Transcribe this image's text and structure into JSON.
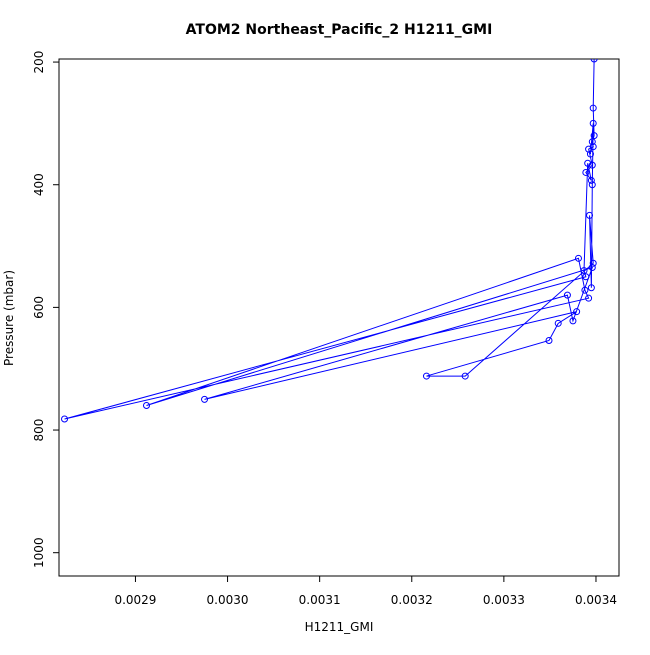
{
  "chart_data": {
    "type": "line",
    "title": "ATOM2 Northeast_Pacific_2 H1211_GMI",
    "xlabel": "H1211_GMI",
    "ylabel": "Pressure (mbar)",
    "xlim": [
      0.002817,
      0.003425
    ],
    "ylim": [
      1038,
      195
    ],
    "y_reversed": true,
    "x_ticks": [
      0.0029,
      0.003,
      0.0031,
      0.0032,
      0.0033,
      0.0034
    ],
    "x_tick_labels": [
      "0.0029",
      "0.0030",
      "0.0031",
      "0.0032",
      "0.0033",
      "0.0034"
    ],
    "y_ticks": [
      200,
      400,
      600,
      800,
      1000
    ],
    "y_tick_labels": [
      "200",
      "400",
      "600",
      "800",
      "1000"
    ],
    "grid": false,
    "legend": "none",
    "series_color": "#0000ff",
    "series": [
      {
        "x": [
          0.003398,
          0.003397,
          0.003398,
          0.003396,
          0.003397,
          0.003392,
          0.003396,
          0.003389,
          0.003395,
          0.003391,
          0.003387,
          0.003389,
          0.002823,
          0.003392,
          0.003388,
          0.003381,
          0.002912,
          0.003396,
          0.003375,
          0.003369,
          0.002975,
          0.003379,
          0.003359,
          0.003349,
          0.003216,
          0.003258,
          0.003397,
          0.003393,
          0.003395,
          0.003396,
          0.003397,
          0.003394
        ],
        "y": [
          195,
          275,
          320,
          330,
          338,
          342,
          368,
          380,
          393,
          365,
          540,
          550,
          782,
          585,
          572,
          520,
          760,
          535,
          622,
          580,
          750,
          607,
          626,
          654,
          712,
          712,
          528,
          450,
          568,
          400,
          300,
          350
        ]
      }
    ]
  }
}
